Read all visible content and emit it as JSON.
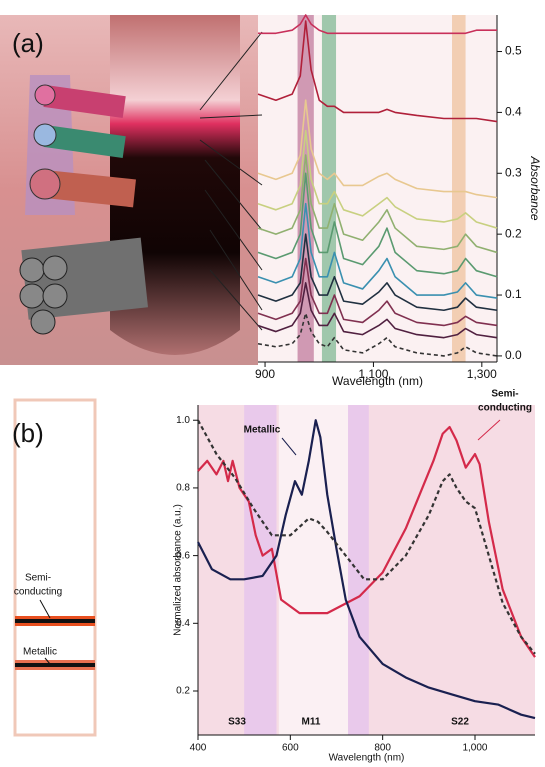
{
  "chart_data": [
    {
      "type": "line",
      "panel_label": "(a)",
      "xlabel": "Wavelength (nm)",
      "ylabel": "Absorbance",
      "xlim": [
        887,
        1328
      ],
      "ylim": [
        -0.01,
        0.56
      ],
      "xticks": [
        900,
        {
          "value": 1100,
          "label": "1,100"
        },
        {
          "value": 1300,
          "label": "1,300"
        }
      ],
      "yticks": [
        {
          "value": 0,
          "label": "0.0"
        },
        0.1,
        0.2,
        0.3,
        0.4,
        0.5
      ],
      "bands": [
        {
          "xmin": 960,
          "xmax": 990,
          "color": "#c88aa8"
        },
        {
          "xmin": 1005,
          "xmax": 1031,
          "color": "#8fc0a0"
        },
        {
          "xmin": 1245,
          "xmax": 1270,
          "color": "#f0c8a8"
        }
      ],
      "x": [
        887,
        920,
        950,
        965,
        975,
        985,
        1000,
        1015,
        1028,
        1045,
        1080,
        1110,
        1125,
        1140,
        1180,
        1230,
        1255,
        1270,
        1290,
        1328
      ],
      "series": [
        {
          "color": "#c8305a",
          "values": [
            0.53,
            0.53,
            0.535,
            0.545,
            0.56,
            0.545,
            0.535,
            0.53,
            0.53,
            0.53,
            0.53,
            0.53,
            0.53,
            0.53,
            0.53,
            0.53,
            0.53,
            0.53,
            0.535,
            0.535
          ]
        },
        {
          "color": "#b0203a",
          "values": [
            0.43,
            0.42,
            0.43,
            0.46,
            0.55,
            0.47,
            0.42,
            0.41,
            0.41,
            0.4,
            0.4,
            0.4,
            0.405,
            0.4,
            0.395,
            0.39,
            0.39,
            0.39,
            0.39,
            0.385
          ]
        },
        {
          "color": "#e8c890",
          "values": [
            0.3,
            0.29,
            0.3,
            0.33,
            0.42,
            0.34,
            0.3,
            0.29,
            0.3,
            0.28,
            0.28,
            0.295,
            0.3,
            0.29,
            0.275,
            0.27,
            0.27,
            0.27,
            0.265,
            0.26
          ]
        },
        {
          "color": "#c8d080",
          "values": [
            0.25,
            0.24,
            0.25,
            0.28,
            0.37,
            0.29,
            0.25,
            0.25,
            0.27,
            0.24,
            0.23,
            0.25,
            0.26,
            0.245,
            0.225,
            0.22,
            0.225,
            0.235,
            0.22,
            0.21
          ]
        },
        {
          "color": "#90b070",
          "values": [
            0.21,
            0.2,
            0.21,
            0.24,
            0.33,
            0.25,
            0.21,
            0.21,
            0.25,
            0.2,
            0.19,
            0.22,
            0.24,
            0.21,
            0.18,
            0.175,
            0.18,
            0.2,
            0.18,
            0.17
          ]
        },
        {
          "color": "#5a9a70",
          "values": [
            0.17,
            0.16,
            0.17,
            0.2,
            0.3,
            0.21,
            0.17,
            0.17,
            0.22,
            0.16,
            0.15,
            0.18,
            0.21,
            0.17,
            0.14,
            0.135,
            0.14,
            0.16,
            0.14,
            0.13
          ]
        },
        {
          "color": "#3a90b0",
          "values": [
            0.13,
            0.12,
            0.13,
            0.16,
            0.25,
            0.17,
            0.13,
            0.13,
            0.17,
            0.12,
            0.11,
            0.14,
            0.16,
            0.13,
            0.1,
            0.1,
            0.105,
            0.12,
            0.1,
            0.095
          ]
        },
        {
          "color": "#203040",
          "values": [
            0.1,
            0.09,
            0.1,
            0.12,
            0.2,
            0.13,
            0.1,
            0.1,
            0.13,
            0.09,
            0.085,
            0.105,
            0.12,
            0.1,
            0.08,
            0.075,
            0.08,
            0.095,
            0.08,
            0.075
          ]
        },
        {
          "color": "#803050",
          "values": [
            0.07,
            0.06,
            0.07,
            0.09,
            0.16,
            0.1,
            0.07,
            0.07,
            0.1,
            0.06,
            0.055,
            0.075,
            0.09,
            0.07,
            0.055,
            0.05,
            0.055,
            0.065,
            0.055,
            0.05
          ]
        },
        {
          "color": "#502040",
          "values": [
            0.05,
            0.04,
            0.05,
            0.07,
            0.12,
            0.075,
            0.05,
            0.05,
            0.07,
            0.04,
            0.035,
            0.05,
            0.06,
            0.045,
            0.035,
            0.03,
            0.035,
            0.045,
            0.035,
            0.03
          ]
        },
        {
          "color": "#333333",
          "style": "dashed",
          "values": [
            0.02,
            0.015,
            0.02,
            0.035,
            0.07,
            0.04,
            0.02,
            0.015,
            0.03,
            0.01,
            0.005,
            0.02,
            0.03,
            0.015,
            0.005,
            0.0,
            0.005,
            0.015,
            0.005,
            0.0
          ]
        }
      ]
    },
    {
      "type": "line",
      "panel_label": "(b)",
      "xlabel": "Wavelength (nm)",
      "ylabel": "Normalized absorbance (a.u.)",
      "xlim": [
        400,
        1130
      ],
      "ylim": [
        0.07,
        1.045
      ],
      "xticks": [
        400,
        600,
        800,
        {
          "value": 1000,
          "label": "1,000"
        }
      ],
      "yticks": [
        0.2,
        0.4,
        0.6,
        0.8,
        {
          "value": 1,
          "label": "1.0"
        }
      ],
      "bands": [
        {
          "xmin": 500,
          "xmax": 570,
          "color": "#e6c6ec"
        },
        {
          "xmin": 575,
          "xmax": 725,
          "color": "#fbf3f6"
        },
        {
          "xmin": 725,
          "xmax": 770,
          "color": "#e6c6ec"
        }
      ],
      "series": [
        {
          "color": "#d42a4a",
          "x": [
            400,
            420,
            440,
            455,
            465,
            475,
            490,
            510,
            525,
            540,
            560,
            580,
            620,
            680,
            750,
            800,
            850,
            880,
            910,
            930,
            945,
            960,
            980,
            1000,
            1010,
            1030,
            1060,
            1100,
            1130
          ],
          "values": [
            0.85,
            0.88,
            0.84,
            0.88,
            0.82,
            0.88,
            0.8,
            0.76,
            0.66,
            0.6,
            0.62,
            0.47,
            0.43,
            0.43,
            0.48,
            0.55,
            0.68,
            0.78,
            0.88,
            0.96,
            0.98,
            0.94,
            0.86,
            0.9,
            0.87,
            0.7,
            0.5,
            0.36,
            0.3
          ]
        },
        {
          "color": "#1a2050",
          "x": [
            400,
            430,
            470,
            500,
            540,
            570,
            590,
            610,
            625,
            640,
            655,
            665,
            680,
            700,
            720,
            750,
            800,
            850,
            900,
            950,
            1000,
            1050,
            1100,
            1130
          ],
          "values": [
            0.64,
            0.56,
            0.53,
            0.53,
            0.54,
            0.6,
            0.72,
            0.82,
            0.78,
            0.88,
            1.0,
            0.95,
            0.78,
            0.62,
            0.47,
            0.36,
            0.28,
            0.24,
            0.21,
            0.19,
            0.17,
            0.16,
            0.13,
            0.12
          ]
        },
        {
          "color": "#333333",
          "style": "dashed",
          "x": [
            400,
            440,
            480,
            520,
            560,
            600,
            640,
            660,
            680,
            720,
            760,
            800,
            850,
            900,
            930,
            945,
            960,
            980,
            1000,
            1030,
            1060,
            1100,
            1130
          ],
          "values": [
            1.0,
            0.9,
            0.83,
            0.74,
            0.66,
            0.66,
            0.71,
            0.7,
            0.67,
            0.6,
            0.53,
            0.53,
            0.6,
            0.72,
            0.82,
            0.84,
            0.8,
            0.76,
            0.74,
            0.6,
            0.46,
            0.36,
            0.31
          ]
        }
      ],
      "annotations": [
        {
          "text": "Metallic",
          "color": "#1a2050"
        },
        {
          "text": [
            "Semi-",
            "conducting"
          ],
          "color": "#d42a4a"
        },
        {
          "text": "S33",
          "color": "#d42a4a"
        },
        {
          "text": "M11",
          "color": "#1a2050"
        },
        {
          "text": "S22",
          "color": "#d42a4a"
        }
      ],
      "image_labels": [
        [
          "Semi-",
          "conducting"
        ],
        "Metallic"
      ]
    }
  ]
}
